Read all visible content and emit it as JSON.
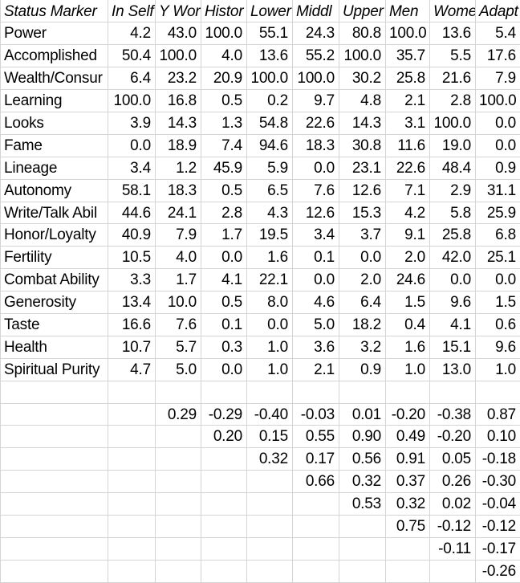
{
  "grid": {
    "header": [
      "Status Marker",
      "In Self",
      "Y Wor",
      "Histor",
      "Lower",
      "Middl",
      "Upper",
      "Men",
      "Wome",
      "Adapt"
    ],
    "rows": [
      {
        "label": "Power",
        "values": [
          "4.2",
          "43.0",
          "100.0",
          "55.1",
          "24.3",
          "80.8",
          "100.0",
          "13.6",
          "5.4"
        ]
      },
      {
        "label": "Accomplished",
        "values": [
          "50.4",
          "100.0",
          "4.0",
          "13.6",
          "55.2",
          "100.0",
          "35.7",
          "5.5",
          "17.6"
        ]
      },
      {
        "label": "Wealth/Consur",
        "values": [
          "6.4",
          "23.2",
          "20.9",
          "100.0",
          "100.0",
          "30.2",
          "25.8",
          "21.6",
          "7.9"
        ]
      },
      {
        "label": "Learning",
        "values": [
          "100.0",
          "16.8",
          "0.5",
          "0.2",
          "9.7",
          "4.8",
          "2.1",
          "2.8",
          "100.0"
        ]
      },
      {
        "label": "Looks",
        "values": [
          "3.9",
          "14.3",
          "1.3",
          "54.8",
          "22.6",
          "14.3",
          "3.1",
          "100.0",
          "0.0"
        ]
      },
      {
        "label": "Fame",
        "values": [
          "0.0",
          "18.9",
          "7.4",
          "94.6",
          "18.3",
          "30.8",
          "11.6",
          "19.0",
          "0.0"
        ]
      },
      {
        "label": "Lineage",
        "values": [
          "3.4",
          "1.2",
          "45.9",
          "5.9",
          "0.0",
          "23.1",
          "22.6",
          "48.4",
          "0.9"
        ]
      },
      {
        "label": "Autonomy",
        "values": [
          "58.1",
          "18.3",
          "0.5",
          "6.5",
          "7.6",
          "12.6",
          "7.1",
          "2.9",
          "31.1"
        ]
      },
      {
        "label": "Write/Talk Abil",
        "values": [
          "44.6",
          "24.1",
          "2.8",
          "4.3",
          "12.6",
          "15.3",
          "4.2",
          "5.8",
          "25.9"
        ]
      },
      {
        "label": "Honor/Loyalty",
        "values": [
          "40.9",
          "7.9",
          "1.7",
          "19.5",
          "3.4",
          "3.7",
          "9.1",
          "25.8",
          "6.8"
        ]
      },
      {
        "label": "Fertility",
        "values": [
          "10.5",
          "4.0",
          "0.0",
          "1.6",
          "0.1",
          "0.0",
          "2.0",
          "42.0",
          "25.1"
        ]
      },
      {
        "label": "Combat Ability",
        "values": [
          "3.3",
          "1.7",
          "4.1",
          "22.1",
          "0.0",
          "2.0",
          "24.6",
          "0.0",
          "0.0"
        ]
      },
      {
        "label": "Generosity",
        "values": [
          "13.4",
          "10.0",
          "0.5",
          "8.0",
          "4.6",
          "6.4",
          "1.5",
          "9.6",
          "1.5"
        ]
      },
      {
        "label": "Taste",
        "values": [
          "16.6",
          "7.6",
          "0.1",
          "0.0",
          "5.0",
          "18.2",
          "0.4",
          "4.1",
          "0.6"
        ]
      },
      {
        "label": "Health",
        "values": [
          "10.7",
          "5.7",
          "0.3",
          "1.0",
          "3.6",
          "3.2",
          "1.6",
          "15.1",
          "9.6"
        ]
      },
      {
        "label": "Spiritual Purity",
        "values": [
          "4.7",
          "5.0",
          "0.0",
          "1.0",
          "2.1",
          "0.9",
          "1.0",
          "13.0",
          "1.0"
        ]
      }
    ],
    "correlation_rows": [
      {
        "values": [
          "",
          "0.29",
          "-0.29",
          "-0.40",
          "-0.03",
          "0.01",
          "-0.20",
          "-0.38",
          "0.87"
        ],
        "red_indices": [
          8
        ]
      },
      {
        "values": [
          "",
          "",
          "0.20",
          "0.15",
          "0.55",
          "0.90",
          "0.49",
          "-0.20",
          "0.10"
        ],
        "red_indices": [
          5
        ]
      },
      {
        "values": [
          "",
          "",
          "",
          "0.32",
          "0.17",
          "0.56",
          "0.91",
          "0.05",
          "-0.18"
        ],
        "red_indices": [
          6
        ]
      },
      {
        "values": [
          "",
          "",
          "",
          "",
          "0.66",
          "0.32",
          "0.37",
          "0.26",
          "-0.30"
        ],
        "red_indices": [
          4
        ]
      },
      {
        "values": [
          "",
          "",
          "",
          "",
          "",
          "0.53",
          "0.32",
          "0.02",
          "-0.04"
        ],
        "red_indices": []
      },
      {
        "values": [
          "",
          "",
          "",
          "",
          "",
          "",
          "0.75",
          "-0.12",
          "-0.12"
        ],
        "red_indices": [
          6
        ]
      },
      {
        "values": [
          "",
          "",
          "",
          "",
          "",
          "",
          "",
          "-0.11",
          "-0.17"
        ],
        "red_indices": []
      },
      {
        "values": [
          "",
          "",
          "",
          "",
          "",
          "",
          "",
          "",
          "-0.26"
        ],
        "red_indices": []
      }
    ],
    "colors": {
      "highlight_red": "#ff0000",
      "gridline": "#d4d4d4",
      "text": "#000000",
      "background": "#ffffff"
    }
  }
}
